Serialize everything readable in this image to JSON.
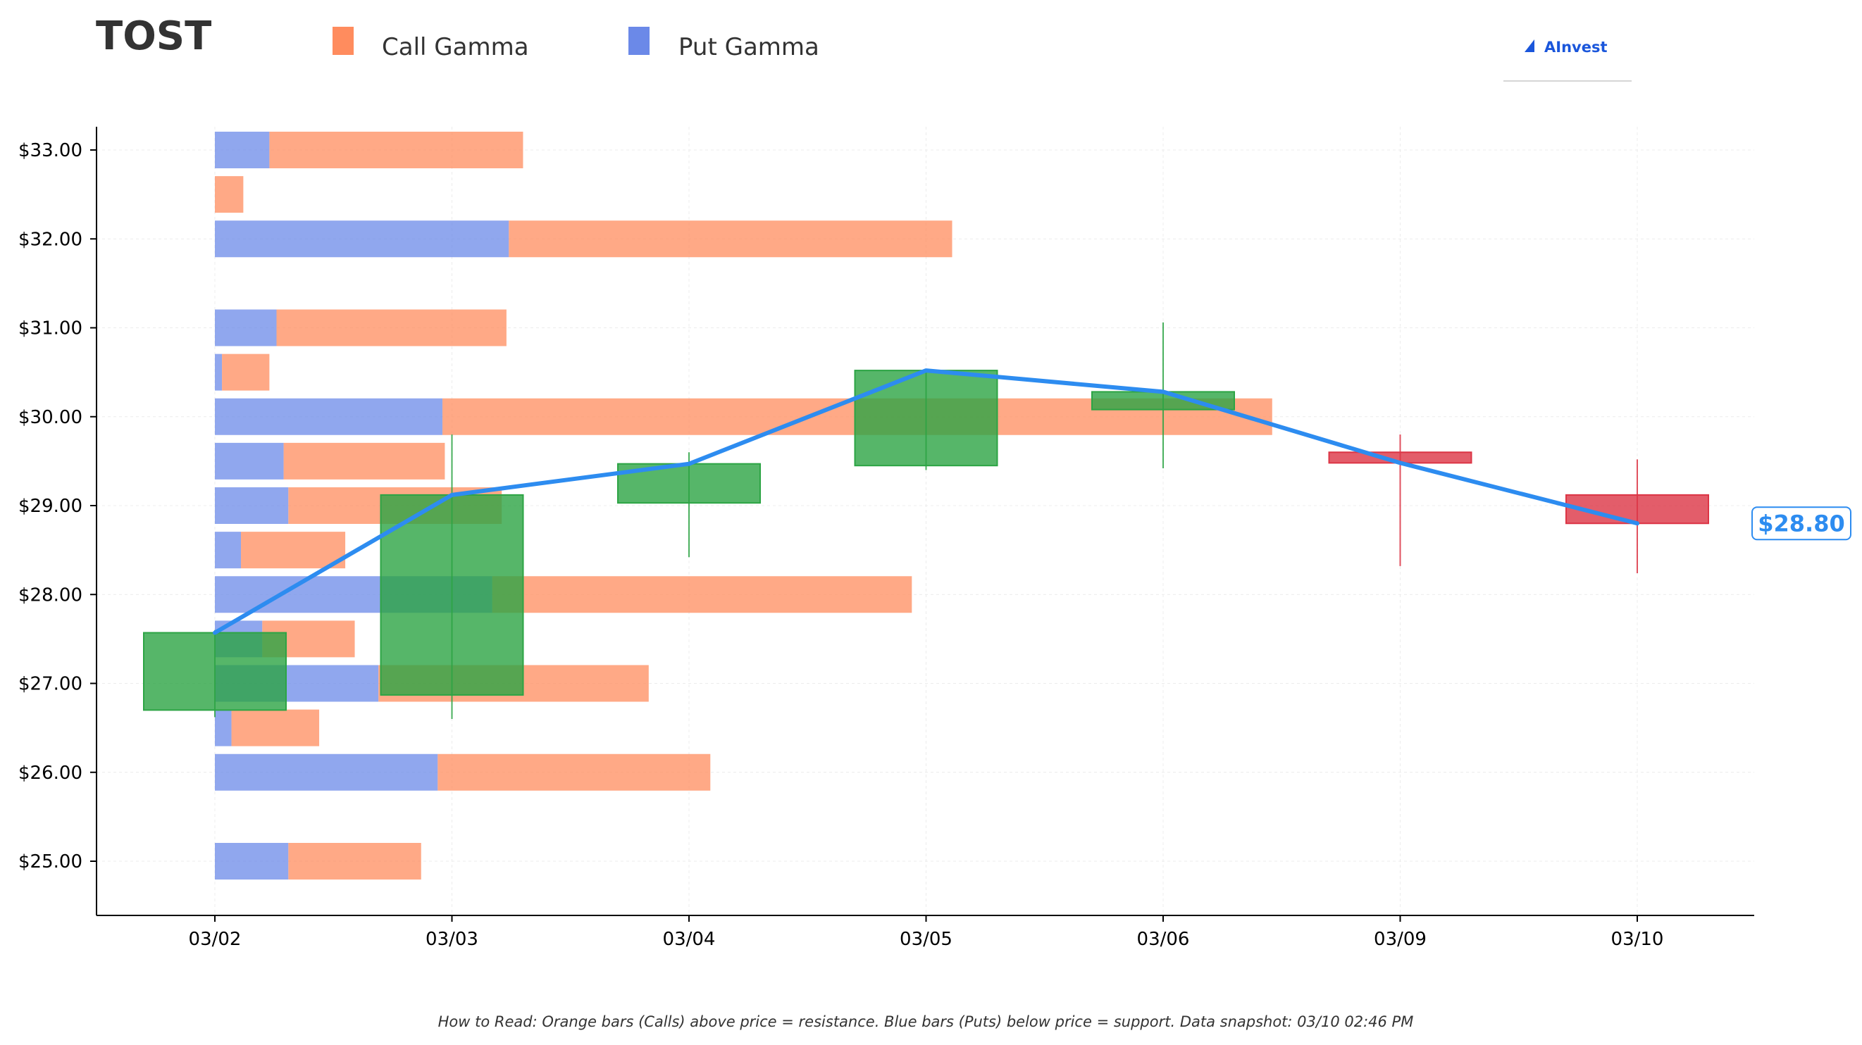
{
  "header": {
    "ticker": "TOST",
    "brand": "AInvest"
  },
  "legend": [
    {
      "label": "Call Gamma",
      "color": "#ff8c5e"
    },
    {
      "label": "Put Gamma",
      "color": "#6b89e8"
    }
  ],
  "colors": {
    "call": "#ff8c5e",
    "put": "#6b89e8",
    "up": "#2ca444",
    "down": "#dc3545",
    "price_line": "#2d8cf0"
  },
  "footnote": "How to Read: Orange bars (Calls) above price = resistance. Blue bars (Puts) below price = support. Data snapshot: 03/10 02:46 PM",
  "chart_data": {
    "type": "candlestick",
    "title": "TOST",
    "x_categories": [
      "03/02",
      "03/03",
      "03/04",
      "03/05",
      "03/06",
      "03/09",
      "03/10"
    ],
    "y_ticks": [
      "$25.00",
      "$26.00",
      "$27.00",
      "$28.00",
      "$29.00",
      "$30.00",
      "$31.00",
      "$32.00",
      "$33.00"
    ],
    "ylim": [
      24.4,
      33.3
    ],
    "candles": [
      {
        "date": "03/02",
        "open": 26.7,
        "high": 27.6,
        "low": 26.62,
        "close": 27.57
      },
      {
        "date": "03/03",
        "open": 26.87,
        "high": 29.8,
        "low": 26.6,
        "close": 29.12
      },
      {
        "date": "03/04",
        "open": 29.03,
        "high": 29.6,
        "low": 28.42,
        "close": 29.47
      },
      {
        "date": "03/05",
        "open": 29.45,
        "high": 30.52,
        "low": 29.4,
        "close": 30.52
      },
      {
        "date": "03/06",
        "open": 30.08,
        "high": 31.06,
        "low": 29.42,
        "close": 30.28
      },
      {
        "date": "03/09",
        "open": 29.6,
        "high": 29.8,
        "low": 28.32,
        "close": 29.48
      },
      {
        "date": "03/10",
        "open": 29.12,
        "high": 29.52,
        "low": 28.24,
        "close": 28.8
      }
    ],
    "price_line": [
      27.57,
      29.12,
      29.47,
      30.52,
      30.28,
      29.48,
      28.8
    ],
    "last_price_label": "$28.80",
    "gamma_strikes": [
      {
        "strike": 33.0,
        "put": 0.23,
        "call": 1.07
      },
      {
        "strike": 32.5,
        "put": 0.0,
        "call": 0.12
      },
      {
        "strike": 32.0,
        "put": 1.24,
        "call": 1.87
      },
      {
        "strike": 31.0,
        "put": 0.26,
        "call": 0.97
      },
      {
        "strike": 30.5,
        "put": 0.03,
        "call": 0.2
      },
      {
        "strike": 30.0,
        "put": 0.96,
        "call": 3.5
      },
      {
        "strike": 29.5,
        "put": 0.29,
        "call": 0.68
      },
      {
        "strike": 29.0,
        "put": 0.31,
        "call": 0.9
      },
      {
        "strike": 28.5,
        "put": 0.11,
        "call": 0.44
      },
      {
        "strike": 28.0,
        "put": 1.17,
        "call": 1.77
      },
      {
        "strike": 27.5,
        "put": 0.2,
        "call": 0.39
      },
      {
        "strike": 27.0,
        "put": 0.69,
        "call": 1.14
      },
      {
        "strike": 26.5,
        "put": 0.07,
        "call": 0.37
      },
      {
        "strike": 26.0,
        "put": 0.94,
        "call": 1.15
      },
      {
        "strike": 25.0,
        "put": 0.31,
        "call": 0.56
      }
    ],
    "grid": true
  }
}
